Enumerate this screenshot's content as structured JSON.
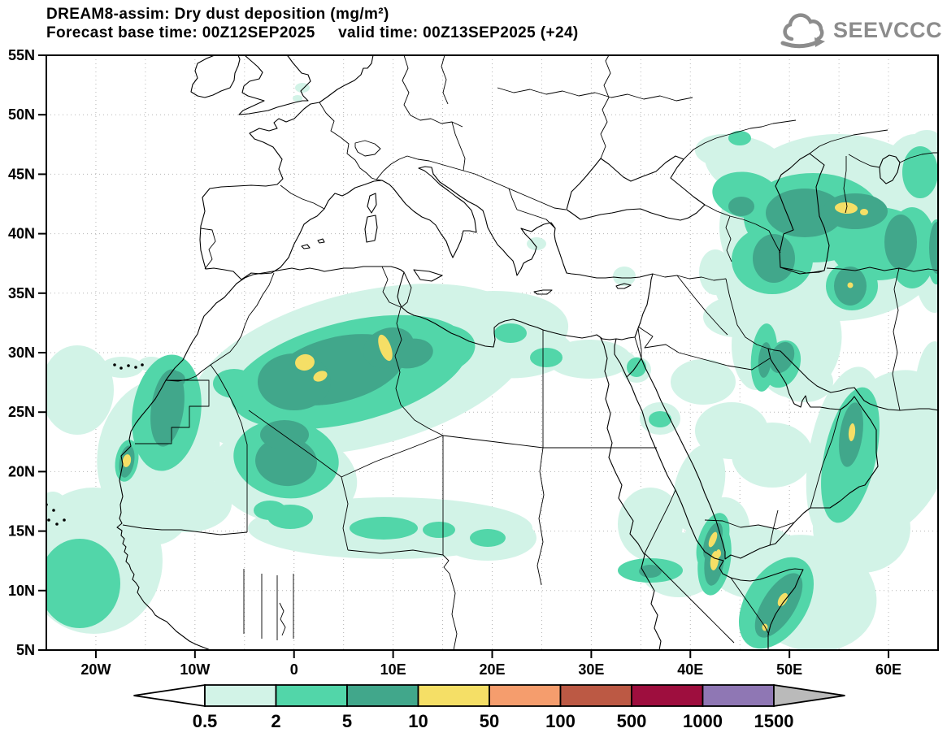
{
  "header": {
    "title": "DREAM8-assim: Dry dust deposition (mg/m²)",
    "subtitle": "Forecast base time: 00Z12SEP2025     valid time: 00Z13SEP2025 (+24)"
  },
  "branding": {
    "logo_text": "SEEVCCC"
  },
  "map": {
    "lat_tick_labels": [
      "55N",
      "50N",
      "45N",
      "40N",
      "35N",
      "30N",
      "25N",
      "20N",
      "15N",
      "10N",
      "5N"
    ],
    "lon_tick_labels": [
      "20W",
      "10W",
      "0",
      "10E",
      "20E",
      "30E",
      "40E",
      "50E",
      "60E"
    ]
  },
  "colorbar": {
    "boundary_labels": [
      "0.5",
      "2",
      "5",
      "10",
      "50",
      "100",
      "500",
      "1000",
      "1500"
    ],
    "segment_colors": [
      "#d2f3e7",
      "#52d6a9",
      "#41a78b",
      "#f5df66",
      "#f59d6d",
      "#bc5944",
      "#9e0e3e",
      "#8f77b4"
    ],
    "below_min_color": "#ffffff",
    "above_max_color": "#bababa"
  },
  "dust_levels": {
    "units": "mg/m²",
    "fill_levels": [
      "0.5",
      "2",
      "5",
      "10"
    ]
  }
}
